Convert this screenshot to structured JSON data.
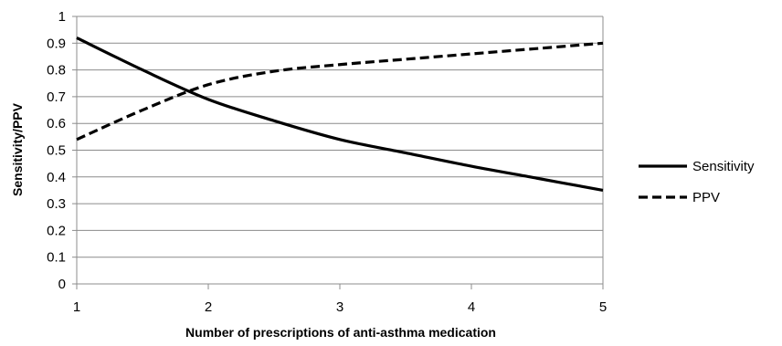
{
  "chart_data": {
    "type": "line",
    "title": "",
    "xlabel": "Number of prescriptions of anti-asthma medication",
    "ylabel": "Sensitivity/PPV",
    "xlim": [
      1,
      5
    ],
    "ylim": [
      0,
      1
    ],
    "x_ticks": [
      "1",
      "2",
      "3",
      "4",
      "5"
    ],
    "y_ticks": [
      "0",
      "0.1",
      "0.2",
      "0.3",
      "0.4",
      "0.5",
      "0.6",
      "0.7",
      "0.8",
      "0.9",
      "1"
    ],
    "grid": "horizontal",
    "legend_position": "right",
    "series": [
      {
        "name": "Sensitivity",
        "style": "solid",
        "color": "#000000",
        "x": [
          1,
          1.5,
          2,
          2.5,
          3,
          3.5,
          4,
          4.5,
          5
        ],
        "y": [
          0.92,
          0.8,
          0.69,
          0.61,
          0.54,
          0.49,
          0.44,
          0.395,
          0.35
        ]
      },
      {
        "name": "PPV",
        "style": "dashed",
        "color": "#000000",
        "x": [
          1,
          1.5,
          2,
          2.5,
          3,
          3.5,
          4,
          4.5,
          5
        ],
        "y": [
          0.54,
          0.65,
          0.745,
          0.795,
          0.82,
          0.84,
          0.86,
          0.88,
          0.9
        ]
      }
    ]
  }
}
